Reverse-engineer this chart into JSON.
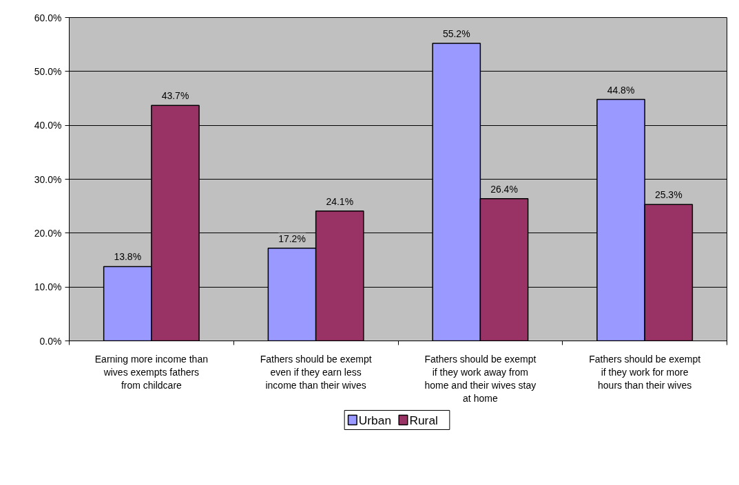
{
  "chart_data": {
    "type": "bar",
    "categories": [
      "Earning more income than wives exempts fathers from childcare",
      "Fathers should be exempt even if they earn less income than their wives",
      "Fathers should be exempt if they work away from home and their wives stay at home",
      "Fathers should be exempt if they work for more hours than their wives"
    ],
    "series": [
      {
        "name": "Urban",
        "color": "#9999ff",
        "values": [
          13.8,
          17.2,
          55.2,
          44.8
        ],
        "value_labels": [
          "13.8%",
          "17.2%",
          "55.2%",
          "44.8%"
        ]
      },
      {
        "name": "Rural",
        "color": "#993366",
        "values": [
          43.7,
          24.1,
          26.4,
          25.3
        ],
        "value_labels": [
          "43.7%",
          "24.1%",
          "26.4%",
          "25.3%"
        ]
      }
    ],
    "ylim": [
      0,
      60
    ],
    "yticks": [
      {
        "value": 0,
        "label": "0.0%"
      },
      {
        "value": 10,
        "label": "10.0%"
      },
      {
        "value": 20,
        "label": "20.0%"
      },
      {
        "value": 30,
        "label": "30.0%"
      },
      {
        "value": 40,
        "label": "40.0%"
      },
      {
        "value": 50,
        "label": "50.0%"
      },
      {
        "value": 60,
        "label": "60.0%"
      }
    ],
    "grid": "y",
    "legend": "bottom"
  }
}
